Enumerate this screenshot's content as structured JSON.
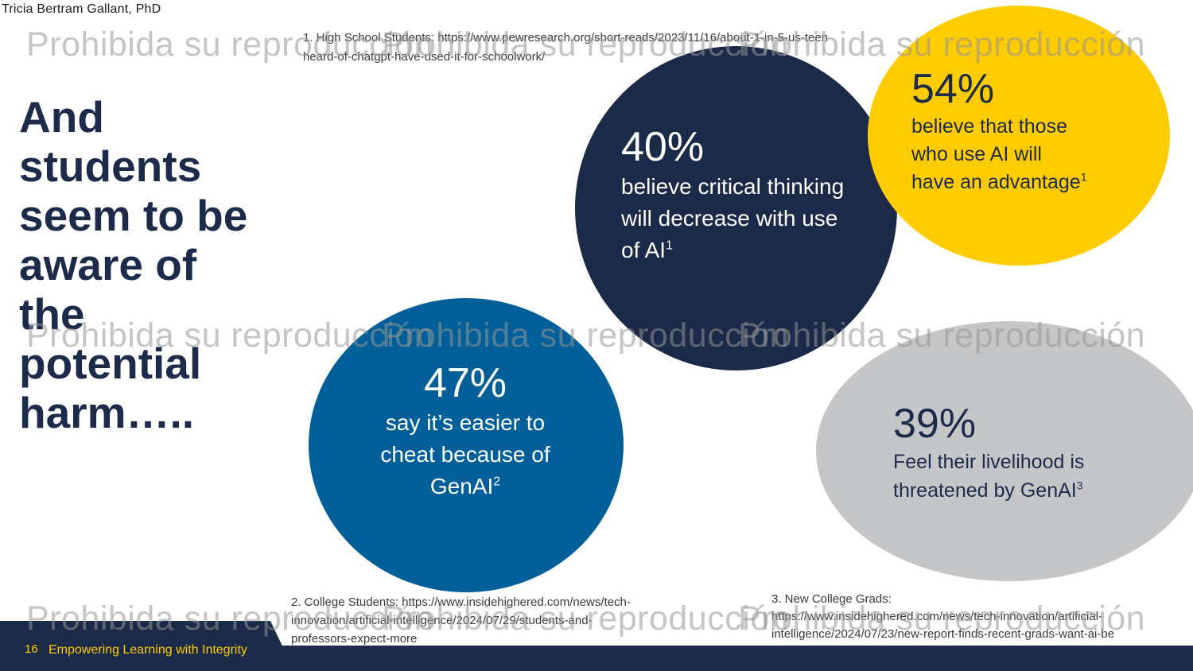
{
  "author": "Tricia Bertram Gallant, PhD",
  "title": "And\nstudents\nseem to be\naware of\nthe\npotential\nharm…..",
  "stats": {
    "s40": {
      "percent": "40%",
      "text": "believe critical thinking\nwill decrease with use\nof AI",
      "sup": "1"
    },
    "s54": {
      "percent": "54%",
      "text": "believe that those\nwho use AI will\nhave an advantage",
      "sup": "1"
    },
    "s47": {
      "percent": "47%",
      "text": "say it’s easier to\ncheat because of\nGenAI",
      "sup": "2"
    },
    "s39": {
      "percent": "39%",
      "text": "Feel their livelihood is\nthreatened by GenAI",
      "sup": "3"
    }
  },
  "footnotes": {
    "fn1": "1. High School Students: https://www.pewresearch.org/short-reads/2023/11/16/about-1-in-5-us-teen\nheard-of-chatgpt-have-used-it-for-schoolwork/",
    "fn2": "2. College Students: https://www.insidehighered.com/news/tech-\ninnovation/artificial-intelligence/2024/07/29/students-and-\nprofessors-expect-more",
    "fn3": "3. New College Grads:\nhttps://www.insidehighered.com/news/tech-innovation/artificial-\nintelligence/2024/07/23/new-report-finds-recent-grads-want-ai-be"
  },
  "footer": {
    "page_number": "16",
    "text": "Empowering Learning with Integrity"
  },
  "watermark": "Prohibida su reproducción",
  "colors": {
    "navy": "#1b2a48",
    "yellow": "#ffcc00",
    "blue": "#005f99",
    "gray": "#c5c6c8"
  }
}
